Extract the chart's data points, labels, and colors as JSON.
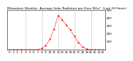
{
  "title": "Milwaukee Weather  Average Solar Radiation per Hour W/m²  (Last 24 Hours)",
  "hours": [
    0,
    1,
    2,
    3,
    4,
    5,
    6,
    7,
    8,
    9,
    10,
    11,
    12,
    13,
    14,
    15,
    16,
    17,
    18,
    19,
    20,
    21,
    22,
    23
  ],
  "values": [
    0,
    0,
    0,
    0,
    0,
    0,
    0,
    2,
    15,
    55,
    130,
    260,
    430,
    380,
    310,
    250,
    170,
    90,
    35,
    8,
    1,
    0,
    0,
    0
  ],
  "line_color": "#ff0000",
  "bg_color": "#ffffff",
  "grid_color": "#999999",
  "ylim": [
    0,
    500
  ],
  "yticks": [
    100,
    200,
    300,
    400,
    500
  ],
  "xticks": [
    0,
    1,
    2,
    3,
    4,
    5,
    6,
    7,
    8,
    9,
    10,
    11,
    12,
    13,
    14,
    15,
    16,
    17,
    18,
    19,
    20,
    21,
    22,
    23
  ],
  "xlabel_fontsize": 3.0,
  "ylabel_fontsize": 3.0,
  "title_fontsize": 3.2
}
